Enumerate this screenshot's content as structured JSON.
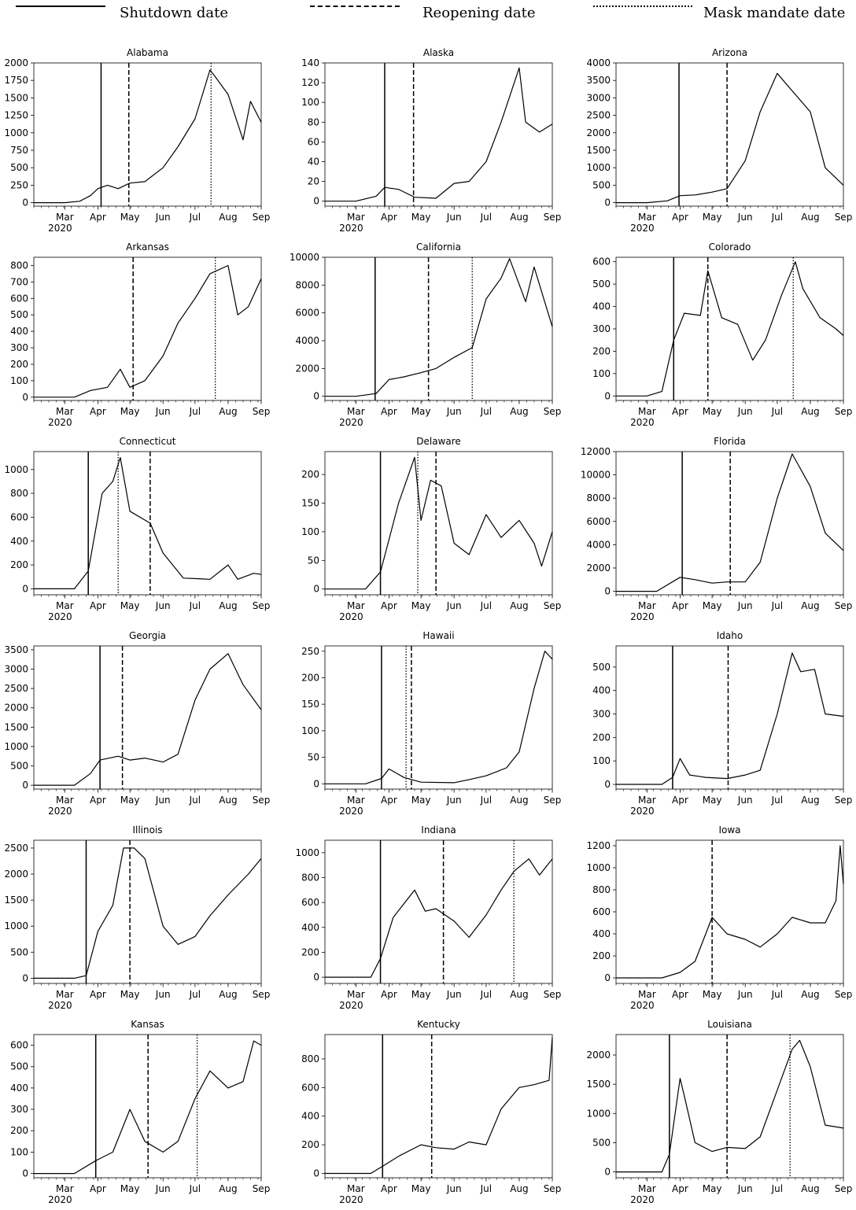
{
  "legend": {
    "shutdown_label": "Shutdown date",
    "reopening_label": "Reopening date",
    "mask_label": "Mask mandate date"
  },
  "chart_data": [
    {
      "type": "line",
      "title": "Alabama",
      "ylim": [
        -50,
        2000
      ],
      "yticks": [
        0,
        250,
        500,
        750,
        1000,
        1250,
        1500,
        1750,
        2000
      ],
      "x": [
        "2020-02-01",
        "2020-03-01",
        "2020-03-15",
        "2020-03-25",
        "2020-04-01",
        "2020-04-10",
        "2020-04-20",
        "2020-05-01",
        "2020-05-15",
        "2020-06-01",
        "2020-06-15",
        "2020-07-01",
        "2020-07-15",
        "2020-07-20",
        "2020-08-01",
        "2020-08-15",
        "2020-08-22",
        "2020-09-01"
      ],
      "y": [
        0,
        0,
        20,
        100,
        200,
        250,
        200,
        280,
        300,
        500,
        800,
        1200,
        1900,
        1800,
        1550,
        900,
        1450,
        1150
      ],
      "shutdown": "2020-04-04",
      "reopening": "2020-04-30",
      "mask": "2020-07-16"
    },
    {
      "type": "line",
      "title": "Alaska",
      "ylim": [
        -5,
        140
      ],
      "yticks": [
        0,
        20,
        40,
        60,
        80,
        100,
        120,
        140
      ],
      "x": [
        "2020-02-01",
        "2020-03-01",
        "2020-03-20",
        "2020-03-28",
        "2020-04-10",
        "2020-04-25",
        "2020-05-15",
        "2020-06-01",
        "2020-06-15",
        "2020-07-01",
        "2020-07-15",
        "2020-08-01",
        "2020-08-07",
        "2020-08-20",
        "2020-09-01"
      ],
      "y": [
        0,
        0,
        5,
        14,
        12,
        4,
        3,
        18,
        20,
        40,
        80,
        135,
        80,
        70,
        78
      ],
      "shutdown": "2020-03-28",
      "reopening": "2020-04-24",
      "mask": null
    },
    {
      "type": "line",
      "title": "Arizona",
      "ylim": [
        -100,
        4000
      ],
      "yticks": [
        0,
        500,
        1000,
        1500,
        2000,
        2500,
        3000,
        3500,
        4000
      ],
      "x": [
        "2020-02-01",
        "2020-03-01",
        "2020-03-20",
        "2020-04-01",
        "2020-04-15",
        "2020-05-01",
        "2020-05-15",
        "2020-06-01",
        "2020-06-15",
        "2020-07-01",
        "2020-07-15",
        "2020-08-01",
        "2020-08-15",
        "2020-09-01"
      ],
      "y": [
        0,
        0,
        50,
        200,
        220,
        300,
        400,
        1200,
        2600,
        3700,
        3200,
        2600,
        1000,
        500
      ],
      "shutdown": "2020-03-31",
      "reopening": "2020-05-15",
      "mask": null
    },
    {
      "type": "line",
      "title": "Arkansas",
      "ylim": [
        -20,
        850
      ],
      "yticks": [
        0,
        100,
        200,
        300,
        400,
        500,
        600,
        700,
        800
      ],
      "x": [
        "2020-02-01",
        "2020-03-10",
        "2020-03-25",
        "2020-04-10",
        "2020-04-22",
        "2020-05-01",
        "2020-05-15",
        "2020-06-01",
        "2020-06-15",
        "2020-07-01",
        "2020-07-15",
        "2020-08-01",
        "2020-08-10",
        "2020-08-20",
        "2020-09-01"
      ],
      "y": [
        0,
        0,
        40,
        60,
        170,
        60,
        100,
        250,
        450,
        600,
        750,
        800,
        500,
        550,
        720
      ],
      "shutdown": null,
      "reopening": "2020-05-04",
      "mask": "2020-07-20"
    },
    {
      "type": "line",
      "title": "California",
      "ylim": [
        -300,
        10000
      ],
      "yticks": [
        0,
        2000,
        4000,
        6000,
        8000,
        10000
      ],
      "x": [
        "2020-02-01",
        "2020-03-01",
        "2020-03-20",
        "2020-04-01",
        "2020-04-15",
        "2020-05-01",
        "2020-05-15",
        "2020-06-01",
        "2020-06-18",
        "2020-07-01",
        "2020-07-15",
        "2020-07-23",
        "2020-08-07",
        "2020-08-15",
        "2020-09-01"
      ],
      "y": [
        0,
        0,
        200,
        1200,
        1400,
        1700,
        2000,
        2800,
        3500,
        7000,
        8500,
        9900,
        6800,
        9300,
        5000
      ],
      "shutdown": "2020-03-19",
      "reopening": "2020-05-08",
      "mask": "2020-06-18"
    },
    {
      "type": "line",
      "title": "Colorado",
      "ylim": [
        -20,
        620
      ],
      "yticks": [
        0,
        100,
        200,
        300,
        400,
        500,
        600
      ],
      "x": [
        "2020-02-01",
        "2020-03-01",
        "2020-03-15",
        "2020-03-26",
        "2020-04-05",
        "2020-04-20",
        "2020-04-27",
        "2020-05-10",
        "2020-05-25",
        "2020-06-08",
        "2020-06-20",
        "2020-07-05",
        "2020-07-18",
        "2020-07-25",
        "2020-08-10",
        "2020-08-25",
        "2020-09-01"
      ],
      "y": [
        0,
        0,
        20,
        250,
        370,
        360,
        560,
        350,
        320,
        160,
        250,
        450,
        600,
        480,
        350,
        300,
        270
      ],
      "shutdown": "2020-03-26",
      "reopening": "2020-04-27",
      "mask": "2020-07-16"
    },
    {
      "type": "line",
      "title": "Connecticut",
      "ylim": [
        -50,
        1150
      ],
      "yticks": [
        0,
        200,
        400,
        600,
        800,
        1000
      ],
      "x": [
        "2020-02-01",
        "2020-03-10",
        "2020-03-23",
        "2020-04-05",
        "2020-04-15",
        "2020-04-22",
        "2020-05-01",
        "2020-05-20",
        "2020-06-01",
        "2020-06-20",
        "2020-07-15",
        "2020-08-01",
        "2020-08-10",
        "2020-08-25",
        "2020-09-01"
      ],
      "y": [
        0,
        0,
        150,
        800,
        900,
        1100,
        650,
        550,
        300,
        90,
        80,
        200,
        80,
        130,
        120
      ],
      "shutdown": "2020-03-23",
      "reopening": "2020-05-20",
      "mask": "2020-04-20"
    },
    {
      "type": "line",
      "title": "Delaware",
      "ylim": [
        -10,
        240
      ],
      "yticks": [
        0,
        50,
        100,
        150,
        200
      ],
      "x": [
        "2020-02-01",
        "2020-03-10",
        "2020-03-24",
        "2020-04-10",
        "2020-04-25",
        "2020-05-01",
        "2020-05-10",
        "2020-05-20",
        "2020-06-01",
        "2020-06-15",
        "2020-07-01",
        "2020-07-15",
        "2020-08-01",
        "2020-08-15",
        "2020-08-22",
        "2020-09-01"
      ],
      "y": [
        0,
        0,
        30,
        150,
        230,
        120,
        190,
        180,
        80,
        60,
        130,
        90,
        120,
        80,
        40,
        100
      ],
      "shutdown": "2020-03-24",
      "reopening": "2020-05-15",
      "mask": "2020-04-28"
    },
    {
      "type": "line",
      "title": "Florida",
      "ylim": [
        -300,
        12000
      ],
      "yticks": [
        0,
        2000,
        4000,
        6000,
        8000,
        10000,
        12000
      ],
      "x": [
        "2020-02-01",
        "2020-03-10",
        "2020-04-01",
        "2020-04-15",
        "2020-05-01",
        "2020-05-15",
        "2020-06-01",
        "2020-06-15",
        "2020-07-01",
        "2020-07-15",
        "2020-08-01",
        "2020-08-15",
        "2020-09-01"
      ],
      "y": [
        0,
        0,
        1200,
        1000,
        700,
        800,
        800,
        2500,
        8000,
        11800,
        9000,
        5000,
        3500
      ],
      "shutdown": "2020-04-03",
      "reopening": "2020-05-18",
      "mask": null
    },
    {
      "type": "line",
      "title": "Georgia",
      "ylim": [
        -100,
        3600
      ],
      "yticks": [
        0,
        500,
        1000,
        1500,
        2000,
        2500,
        3000,
        3500
      ],
      "x": [
        "2020-02-01",
        "2020-03-10",
        "2020-03-25",
        "2020-04-03",
        "2020-04-20",
        "2020-05-01",
        "2020-05-15",
        "2020-06-01",
        "2020-06-15",
        "2020-07-01",
        "2020-07-15",
        "2020-08-01",
        "2020-08-15",
        "2020-09-01"
      ],
      "y": [
        0,
        0,
        300,
        650,
        750,
        650,
        700,
        600,
        800,
        2200,
        3000,
        3400,
        2600,
        1950
      ],
      "shutdown": "2020-04-03",
      "reopening": "2020-04-24",
      "mask": null
    },
    {
      "type": "line",
      "title": "Hawaii",
      "ylim": [
        -10,
        260
      ],
      "yticks": [
        0,
        50,
        100,
        150,
        200,
        250
      ],
      "x": [
        "2020-02-01",
        "2020-03-10",
        "2020-03-25",
        "2020-04-01",
        "2020-04-15",
        "2020-05-01",
        "2020-06-01",
        "2020-06-15",
        "2020-07-01",
        "2020-07-20",
        "2020-08-01",
        "2020-08-15",
        "2020-08-25",
        "2020-09-01"
      ],
      "y": [
        0,
        0,
        10,
        28,
        12,
        3,
        2,
        8,
        15,
        30,
        60,
        180,
        250,
        235
      ],
      "shutdown": "2020-03-25",
      "reopening": "2020-04-22",
      "mask": "2020-04-17"
    },
    {
      "type": "line",
      "title": "Idaho",
      "ylim": [
        -20,
        590
      ],
      "yticks": [
        0,
        100,
        200,
        300,
        400,
        500
      ],
      "x": [
        "2020-02-01",
        "2020-03-15",
        "2020-03-25",
        "2020-04-01",
        "2020-04-10",
        "2020-04-25",
        "2020-05-15",
        "2020-06-01",
        "2020-06-15",
        "2020-07-01",
        "2020-07-15",
        "2020-07-23",
        "2020-08-05",
        "2020-08-15",
        "2020-09-01"
      ],
      "y": [
        0,
        0,
        30,
        110,
        40,
        30,
        25,
        40,
        60,
        300,
        560,
        480,
        490,
        300,
        290
      ],
      "shutdown": "2020-03-25",
      "reopening": "2020-05-16",
      "mask": null
    },
    {
      "type": "line",
      "title": "Illinois",
      "ylim": [
        -100,
        2650
      ],
      "yticks": [
        0,
        500,
        1000,
        1500,
        2000,
        2500
      ],
      "x": [
        "2020-02-01",
        "2020-03-10",
        "2020-03-21",
        "2020-04-01",
        "2020-04-15",
        "2020-04-25",
        "2020-05-05",
        "2020-05-15",
        "2020-06-01",
        "2020-06-15",
        "2020-07-01",
        "2020-07-15",
        "2020-08-01",
        "2020-08-20",
        "2020-09-01"
      ],
      "y": [
        0,
        0,
        50,
        900,
        1400,
        2500,
        2500,
        2300,
        1000,
        650,
        800,
        1200,
        1600,
        2000,
        2300
      ],
      "shutdown": "2020-03-21",
      "reopening": "2020-05-01",
      "mask": null
    },
    {
      "type": "line",
      "title": "Indiana",
      "ylim": [
        -50,
        1100
      ],
      "yticks": [
        0,
        200,
        400,
        600,
        800,
        1000
      ],
      "x": [
        "2020-02-01",
        "2020-03-15",
        "2020-03-24",
        "2020-04-05",
        "2020-04-25",
        "2020-05-05",
        "2020-05-15",
        "2020-06-01",
        "2020-06-15",
        "2020-07-01",
        "2020-07-15",
        "2020-07-27",
        "2020-08-10",
        "2020-08-20",
        "2020-09-01"
      ],
      "y": [
        0,
        0,
        150,
        480,
        700,
        530,
        550,
        450,
        320,
        500,
        700,
        850,
        950,
        820,
        950
      ],
      "shutdown": "2020-03-24",
      "reopening": "2020-05-22",
      "mask": "2020-07-27"
    },
    {
      "type": "line",
      "title": "Iowa",
      "ylim": [
        -50,
        1250
      ],
      "yticks": [
        0,
        200,
        400,
        600,
        800,
        1000,
        1200
      ],
      "x": [
        "2020-02-01",
        "2020-03-15",
        "2020-04-01",
        "2020-04-15",
        "2020-05-01",
        "2020-05-15",
        "2020-06-01",
        "2020-06-15",
        "2020-07-01",
        "2020-07-15",
        "2020-08-01",
        "2020-08-15",
        "2020-08-25",
        "2020-08-29",
        "2020-09-01"
      ],
      "y": [
        0,
        0,
        50,
        150,
        550,
        400,
        350,
        280,
        400,
        550,
        500,
        500,
        700,
        1200,
        850
      ],
      "shutdown": null,
      "reopening": "2020-05-01",
      "mask": null
    },
    {
      "type": "line",
      "title": "Kansas",
      "ylim": [
        -20,
        650
      ],
      "yticks": [
        0,
        100,
        200,
        300,
        400,
        500,
        600
      ],
      "x": [
        "2020-02-01",
        "2020-03-10",
        "2020-03-30",
        "2020-04-15",
        "2020-05-01",
        "2020-05-15",
        "2020-06-01",
        "2020-06-15",
        "2020-07-01",
        "2020-07-15",
        "2020-08-01",
        "2020-08-15",
        "2020-08-25",
        "2020-09-01"
      ],
      "y": [
        0,
        0,
        60,
        100,
        300,
        150,
        100,
        150,
        350,
        480,
        400,
        430,
        620,
        600
      ],
      "shutdown": "2020-03-30",
      "reopening": "2020-05-18",
      "mask": "2020-07-03"
    },
    {
      "type": "line",
      "title": "Kentucky",
      "ylim": [
        -30,
        970
      ],
      "yticks": [
        0,
        200,
        400,
        600,
        800
      ],
      "x": [
        "2020-02-01",
        "2020-03-15",
        "2020-03-26",
        "2020-04-10",
        "2020-05-01",
        "2020-05-15",
        "2020-06-01",
        "2020-06-15",
        "2020-07-01",
        "2020-07-15",
        "2020-08-01",
        "2020-08-15",
        "2020-08-29",
        "2020-09-01"
      ],
      "y": [
        0,
        0,
        50,
        120,
        200,
        180,
        170,
        220,
        200,
        450,
        600,
        620,
        650,
        950
      ],
      "shutdown": "2020-03-26",
      "reopening": "2020-05-11",
      "mask": null
    },
    {
      "type": "line",
      "title": "Louisiana",
      "ylim": [
        -100,
        2350
      ],
      "yticks": [
        0,
        500,
        1000,
        1500,
        2000
      ],
      "x": [
        "2020-02-01",
        "2020-03-15",
        "2020-03-22",
        "2020-04-01",
        "2020-04-05",
        "2020-04-15",
        "2020-05-01",
        "2020-05-15",
        "2020-06-01",
        "2020-06-15",
        "2020-07-01",
        "2020-07-15",
        "2020-07-22",
        "2020-08-01",
        "2020-08-15",
        "2020-09-01"
      ],
      "y": [
        0,
        0,
        300,
        1600,
        1300,
        500,
        350,
        420,
        400,
        600,
        1400,
        2100,
        2250,
        1800,
        800,
        750
      ],
      "shutdown": "2020-03-22",
      "reopening": "2020-05-15",
      "mask": "2020-07-13"
    }
  ],
  "xtick_labels": [
    {
      "date": "2020-03-01",
      "label": "Mar",
      "sub": "2020"
    },
    {
      "date": "2020-04-01",
      "label": "Apr",
      "sub": ""
    },
    {
      "date": "2020-05-01",
      "label": "May",
      "sub": ""
    },
    {
      "date": "2020-06-01",
      "label": "Jun",
      "sub": ""
    },
    {
      "date": "2020-07-01",
      "label": "Jul",
      "sub": ""
    },
    {
      "date": "2020-08-01",
      "label": "Aug",
      "sub": ""
    },
    {
      "date": "2020-09-01",
      "label": "Sep",
      "sub": ""
    }
  ],
  "x_range": [
    "2020-02-01",
    "2020-09-01"
  ]
}
